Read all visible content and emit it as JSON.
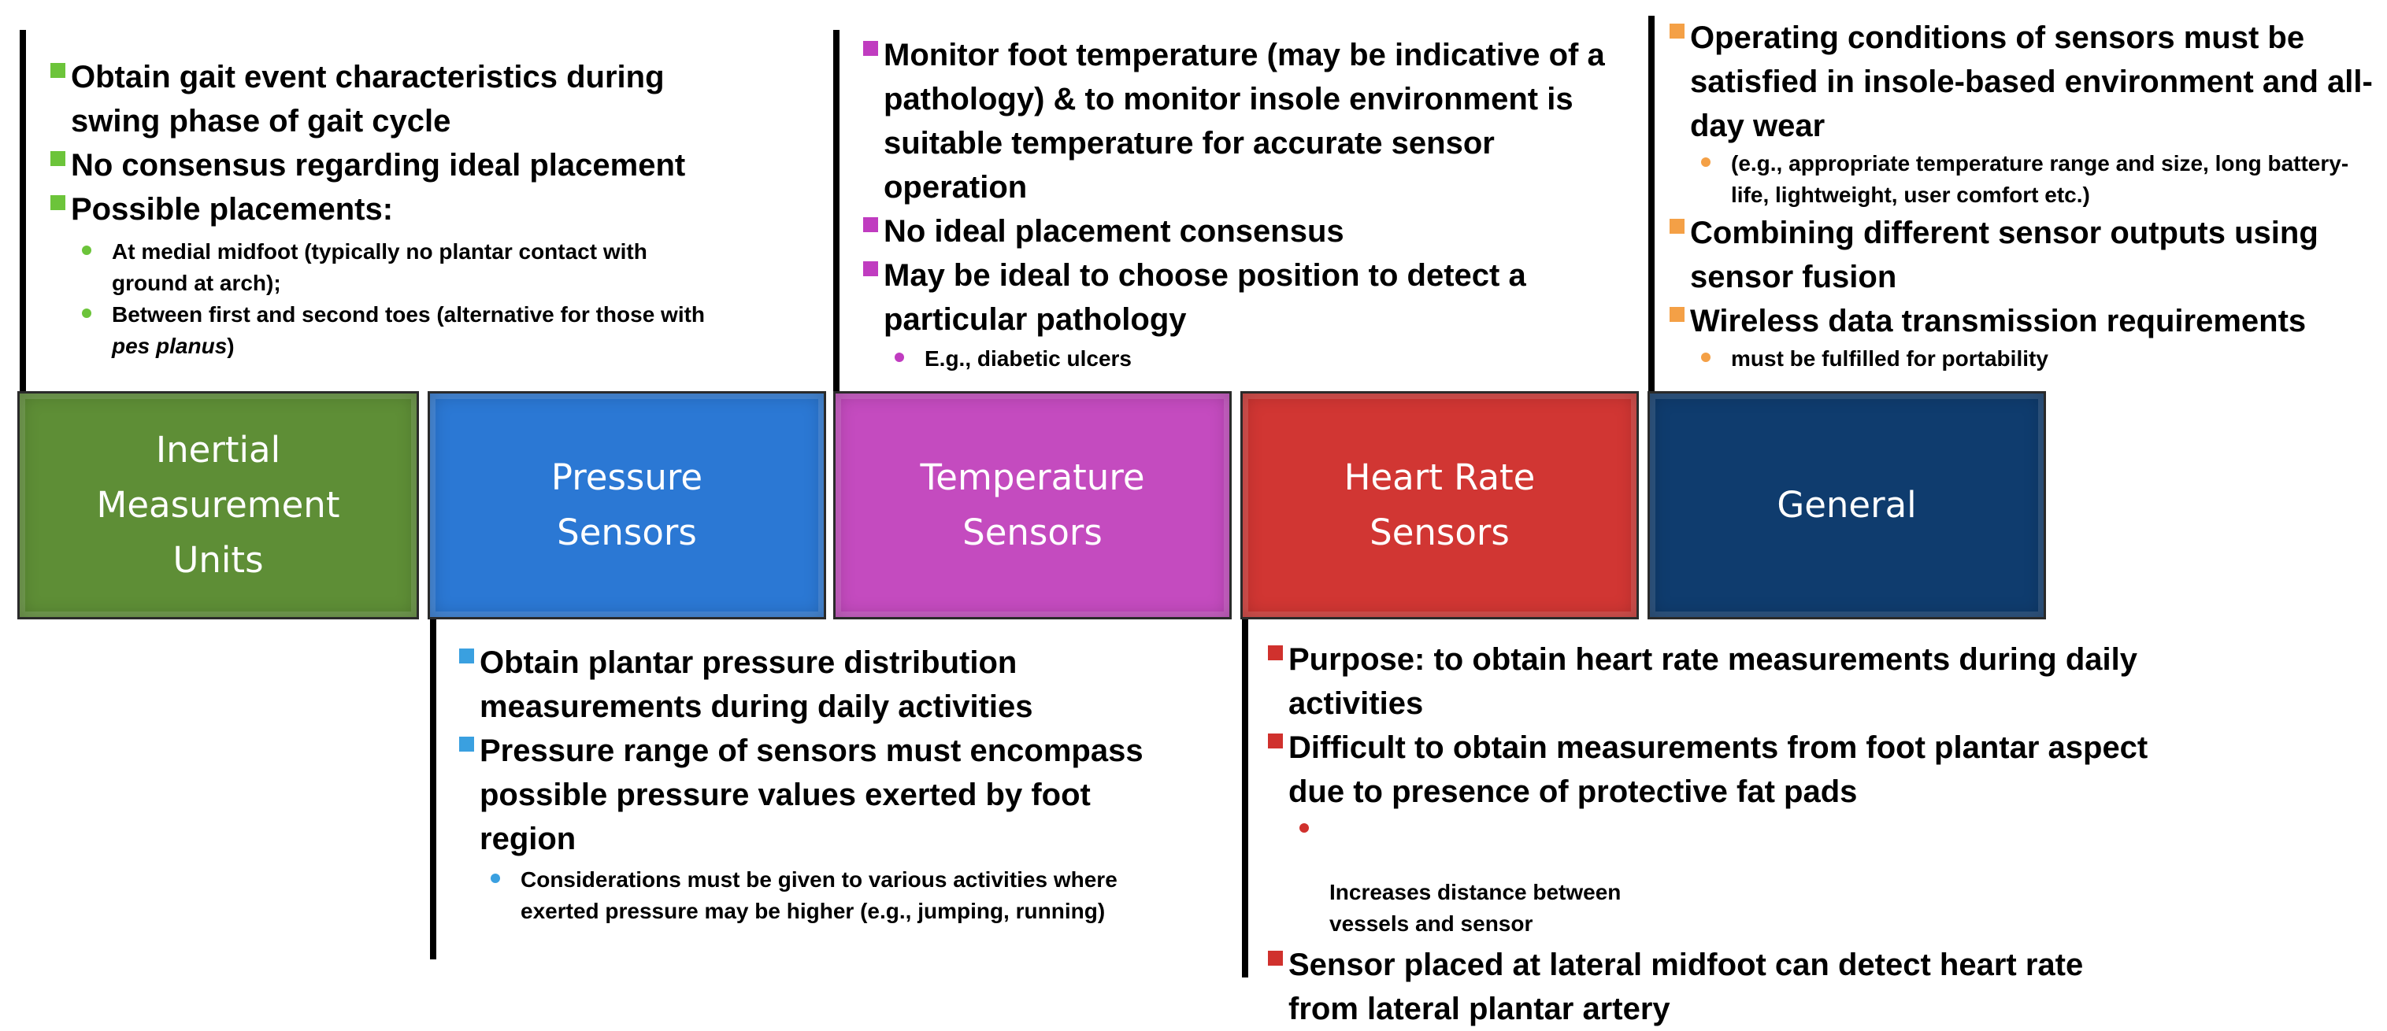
{
  "colors": {
    "imu": "#5e8e36",
    "pressure": "#2b78d4",
    "temperature": "#c44bbf",
    "heart_rate": "#d13633",
    "general": "#0f3c6e",
    "imu_bullet": "#6cc43a",
    "pressure_bullet": "#3aa0e0",
    "temperature_bullet": "#c03cc0",
    "heart_rate_bullet": "#d0312d",
    "general_bullet": "#f4a046"
  },
  "boxes": {
    "imu": "Inertial\nMeasurement\nUnits",
    "pressure": "Pressure\nSensors",
    "temperature": "Temperature\nSensors",
    "heart_rate": "Heart Rate\nSensors",
    "general": "General"
  },
  "imu": {
    "b1": "Obtain gait event characteristics during swing phase of gait cycle",
    "b2": "No consensus regarding ideal placement",
    "b3": "Possible placements:",
    "s1": "At medial midfoot (typically no plantar contact with ground at arch);",
    "s2_pre": "Between first and second toes (alternative for those with ",
    "s2_em": "pes planus",
    "s2_post": ")"
  },
  "pressure": {
    "b1": "Obtain plantar pressure distribution measurements during daily activities",
    "b2": "Pressure range of sensors must encompass possible pressure values exerted by foot region",
    "s1": "Considerations must be given to various activities where exerted pressure may be higher (e.g., jumping, running)"
  },
  "temperature": {
    "b1": "Monitor foot temperature (may be indicative of a pathology) & to monitor insole environment is suitable temperature for accurate sensor operation",
    "b2": "No ideal placement consensus",
    "b3": "May be ideal to choose position to detect a particular pathology",
    "s1": "E.g., diabetic ulcers"
  },
  "heart_rate": {
    "b1": "Purpose: to obtain heart rate measurements during daily activities",
    "b2": "Difficult to obtain measurements from foot plantar aspect due to presence of protective fat pads",
    "s1": "Increases distance between\nvessels and sensor",
    "b3": "Sensor placed at lateral midfoot can detect heart rate from lateral plantar artery"
  },
  "general": {
    "b1": "Operating conditions of sensors must be satisfied in insole-based environment and all-day wear",
    "s1": "(e.g., appropriate temperature range and size, long battery-life, lightweight, user comfort etc.)",
    "b2": "Combining different sensor outputs using sensor fusion",
    "b3": "Wireless data transmission requirements",
    "s2": "must be fulfilled for portability"
  }
}
